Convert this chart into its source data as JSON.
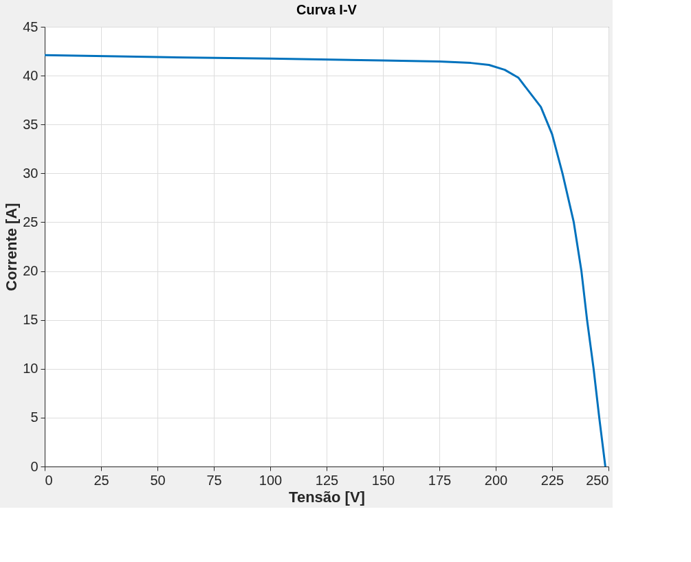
{
  "chart_data": {
    "type": "line",
    "title": "Curva I-V",
    "xlabel": "Tensão [V]",
    "ylabel": "Corrente [A]",
    "x": [
      0,
      50,
      100,
      150,
      175,
      189,
      197,
      204,
      210,
      220,
      225,
      229.6,
      234.6,
      238,
      240.5,
      243.4,
      245.9,
      248.6
    ],
    "series": [
      {
        "color": "#0072bd",
        "values": [
          42.1,
          41.9,
          41.75,
          41.55,
          41.45,
          41.3,
          41.1,
          40.6,
          39.8,
          36.8,
          34.0,
          30,
          25,
          20,
          15,
          10,
          5,
          0
        ]
      }
    ],
    "xlim": [
      0,
      250
    ],
    "xticks": [
      0,
      25,
      50,
      75,
      100,
      125,
      150,
      175,
      200,
      225,
      250
    ],
    "ylim": [
      0,
      45
    ],
    "yticks": [
      0,
      5,
      10,
      15,
      20,
      25,
      30,
      35,
      40,
      45
    ],
    "grid": true,
    "legend": false,
    "marker": "none",
    "line_style": "solid"
  }
}
